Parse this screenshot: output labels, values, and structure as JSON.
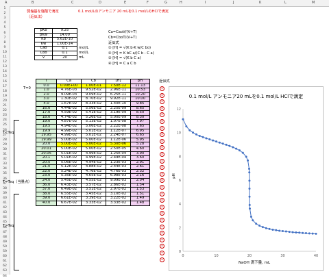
{
  "sheet": {
    "columns": [
      "A",
      "B",
      "C",
      "D",
      "E",
      "F",
      "G",
      "H",
      "I",
      "J",
      "K",
      "L",
      "M",
      "N"
    ],
    "rows": [
      "1",
      "2",
      "3",
      "4",
      "5",
      "6",
      "7",
      "8",
      "9",
      "10",
      "11",
      "12",
      "13",
      "14",
      "15",
      "16",
      "17",
      "18",
      "19",
      "20",
      "21",
      "22",
      "23",
      "24",
      "25",
      "26",
      "27",
      "28",
      "29",
      "30",
      "31",
      "32",
      "33",
      "34",
      "35",
      "36",
      "37",
      "38",
      "39",
      "40",
      "41",
      "42",
      "43",
      "44",
      "45",
      "46",
      "47",
      "48",
      "49",
      "50",
      "59",
      "60",
      "61",
      "62",
      "63",
      "64"
    ],
    "title_line1": "弱塩基を強酸で滴定",
    "title_line1b": "0.1 mol/Lのアンモニア 20 mLを0.1 mol/LのHClで滴定",
    "title_line2": "（近似法）"
  },
  "params": [
    {
      "name": "pKb",
      "value": "9.25",
      "unit": ""
    },
    {
      "name": "pKw",
      "value": "14.00",
      "unit": ""
    },
    {
      "name": "Kb",
      "value": "5.62E-10",
      "unit": ""
    },
    {
      "name": "Kw",
      "value": "1.00E-14",
      "unit": ""
    },
    {
      "name": "Cao",
      "value": "0.1",
      "unit": "mol/L"
    },
    {
      "name": "Cbo",
      "value": "0.1",
      "unit": "mol/L"
    },
    {
      "name": "V",
      "value": "20",
      "unit": "mL"
    }
  ],
  "formulas": [
    "Ca=CaoV/(V+T)",
    "Cb=CboT/(V+T)",
    "近似式",
    "① [H] = √(K b·K w/C bo)",
    "② [H] = K bC a/(C b - C a)",
    "③ [H] = √(K b C a)",
    "④ [H] = C a    C b"
  ],
  "table": {
    "headers": [
      "T",
      "Ca",
      "Cb",
      "[H]",
      "pH"
    ],
    "approx_label": "近似式",
    "rows": [
      [
        "0.0",
        "0.00E+00",
        "1.00E-01",
        "7.50E-12",
        "11.13",
        "①"
      ],
      [
        "1.0",
        "4.76E-03",
        "9.52E-02",
        "2.96E-11",
        "10.53",
        "②"
      ],
      [
        "2.0",
        "9.09E-03",
        "9.09E-02",
        "6.25E-11",
        "10.20",
        "②"
      ],
      [
        "3.0",
        "1.30E-02",
        "8.70E-02",
        "9.92E-11",
        "10.00",
        "②"
      ],
      [
        "4.0",
        "1.67E-02",
        "8.33E-02",
        "1.40E-10",
        "9.85",
        "②"
      ],
      [
        "16.0",
        "4.44E-02",
        "5.56E-02",
        "2.25E-09",
        "8.65",
        "②"
      ],
      [
        "17.0",
        "4.59E-02",
        "5.41E-02",
        "3.19E-09",
        "8.50",
        "②"
      ],
      [
        "18.0",
        "4.74E-02",
        "5.26E-02",
        "5.00E-09",
        "8.30",
        "②"
      ],
      [
        "19.0",
        "4.87E-02",
        "5.13E-02",
        "1.07E-08",
        "7.97",
        "②"
      ],
      [
        "19.5",
        "4.94E-02",
        "5.06E-02",
        "2.22E-08",
        "7.65",
        "②"
      ],
      [
        "19.9",
        "4.99E-02",
        "5.01E-02",
        "1.12E-07",
        "6.95",
        "②"
      ],
      [
        "19.95",
        "4.99E-02",
        "5.01E-02",
        "2.24E-07",
        "6.65",
        "②"
      ],
      [
        "19.99",
        "5.00E-02",
        "5.00E-02",
        "1.12E-06",
        "5.95",
        "②"
      ],
      [
        "20.0",
        "5.00E-02",
        "5.00E-02",
        "5.30E-06",
        "5.28",
        "③"
      ],
      [
        "20.01",
        "5.00E-02",
        "5.00E-02",
        "2.50E-05",
        "4.60",
        "④"
      ],
      [
        "20.05",
        "5.01E-02",
        "4.99E-02",
        "1.25E-04",
        "3.90",
        "④"
      ],
      [
        "20.1",
        "5.01E-02",
        "4.99E-02",
        "2.49E-04",
        "3.60",
        "④"
      ],
      [
        "20.5",
        "5.06E-02",
        "4.94E-02",
        "1.23E-03",
        "2.91",
        "④"
      ],
      [
        "21.0",
        "5.12E-02",
        "4.88E-02",
        "2.44E-03",
        "2.61",
        "④"
      ],
      [
        "22.0",
        "5.24E-02",
        "4.76E-02",
        "4.76E-03",
        "2.32",
        "④"
      ],
      [
        "23.0",
        "5.35E-02",
        "4.65E-02",
        "6.98E-03",
        "2.16",
        "④"
      ],
      [
        "24.0",
        "5.45E-02",
        "4.55E-02",
        "9.09E-03",
        "2.04",
        "④"
      ],
      [
        "36.0",
        "6.43E-02",
        "3.57E-02",
        "2.86E-02",
        "1.54",
        "④"
      ],
      [
        "37.0",
        "6.49E-02",
        "3.51E-02",
        "2.97E-02",
        "1.53",
        "④"
      ],
      [
        "38.0",
        "6.55E-02",
        "3.45E-02",
        "3.10E-02",
        "1.51",
        "④"
      ],
      [
        "39.0",
        "6.61E-02",
        "3.39E-02",
        "3.22E-02",
        "1.49",
        "④"
      ],
      [
        "40.0",
        "6.67E-02",
        "3.33E-02",
        "3.33E-02",
        "1.48",
        "④"
      ]
    ],
    "label_t0": "T=0",
    "label_lt": "T<Teq",
    "label_eq": "T=Teq（当量点）",
    "label_gt": "T>Teq"
  },
  "chart_data": {
    "type": "scatter",
    "title": "0.1 mol/L アンモニア20 mLを0.1 mol/L HClで滴定",
    "xlabel": "NaOH 滴下量, mL",
    "ylabel": "pH",
    "xlim": [
      0,
      40
    ],
    "ylim": [
      0,
      12
    ],
    "xticks": [
      0,
      10,
      20,
      30,
      40
    ],
    "yticks": [
      0,
      2,
      4,
      6,
      8,
      10,
      12
    ],
    "color": "#4472c4",
    "x": [
      0,
      1,
      2,
      3,
      4,
      5,
      6,
      7,
      8,
      9,
      10,
      11,
      12,
      13,
      14,
      15,
      16,
      17,
      18,
      19,
      19.5,
      19.9,
      19.95,
      19.99,
      20,
      20.01,
      20.05,
      20.1,
      20.5,
      21,
      22,
      23,
      24,
      25,
      26,
      27,
      28,
      29,
      30,
      31,
      32,
      33,
      34,
      35,
      36,
      37,
      38,
      39,
      40
    ],
    "y": [
      11.13,
      10.53,
      10.2,
      10.0,
      9.85,
      9.72,
      9.62,
      9.52,
      9.43,
      9.34,
      9.25,
      9.16,
      9.07,
      8.98,
      8.88,
      8.77,
      8.65,
      8.5,
      8.3,
      7.97,
      7.65,
      6.95,
      6.65,
      5.95,
      5.28,
      4.6,
      3.9,
      3.6,
      2.91,
      2.61,
      2.32,
      2.16,
      2.04,
      1.95,
      1.88,
      1.82,
      1.78,
      1.73,
      1.7,
      1.67,
      1.64,
      1.61,
      1.59,
      1.57,
      1.54,
      1.53,
      1.51,
      1.49,
      1.48
    ]
  }
}
